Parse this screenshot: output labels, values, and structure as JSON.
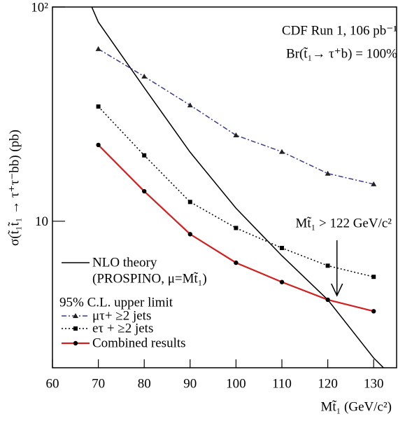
{
  "chart_data": {
    "type": "line",
    "annotations": [
      "CDF Run 1, 106 pb⁻¹",
      "Br(t̃₁→ τ⁺b) = 100%"
    ],
    "limit_label": "Mt̃₁ > 122 GeV/c²",
    "arrow_x": 122,
    "x_label": "Mt̃₁ (GeV/c²)",
    "y_label": "σ(t̃₁t̃₁ → τ⁺τ⁻bb) (pb)",
    "legend_heading": "95% C.L. upper limit",
    "log_y": true,
    "xlim": [
      60,
      135
    ],
    "ylim": [
      2.07,
      100
    ],
    "xticks": [
      60,
      70,
      80,
      90,
      100,
      110,
      120,
      130
    ],
    "yticks": [
      {
        "value": 100,
        "label": "10²"
      },
      10
    ],
    "series": [
      {
        "name": "NLO theory",
        "name2": "(PROSPINO, μ=Mt̃₁)",
        "color": "#000000",
        "dash": "solid",
        "marker": "none",
        "x": [
          65,
          70,
          80,
          90,
          100,
          110,
          120,
          130,
          135
        ],
        "values": [
          150,
          85,
          42,
          21,
          11.5,
          6.9,
          4.3,
          2.3,
          1.8
        ]
      },
      {
        "name": "μτ+ ≥2 jets",
        "color": "#3a3a8a",
        "dash": "dashdot",
        "marker": "triangle",
        "x": [
          70,
          80,
          90,
          100,
          110,
          120,
          130
        ],
        "values": [
          63.7,
          47.4,
          34.8,
          25.2,
          21.1,
          16.7,
          14.9
        ]
      },
      {
        "name": "eτ + ≥2 jets",
        "color": "#000000",
        "dash": "dotted",
        "marker": "square",
        "x": [
          70,
          80,
          90,
          100,
          110,
          120,
          130
        ],
        "values": [
          34.3,
          20.3,
          12.3,
          9.3,
          7.5,
          6.2,
          5.5
        ]
      },
      {
        "name": "Combined results",
        "color": "#d02020",
        "dash": "solid",
        "marker": "circle",
        "x": [
          70,
          80,
          90,
          100,
          110,
          120,
          130
        ],
        "values": [
          22.7,
          13.8,
          8.7,
          6.4,
          5.2,
          4.3,
          3.8
        ]
      }
    ]
  }
}
